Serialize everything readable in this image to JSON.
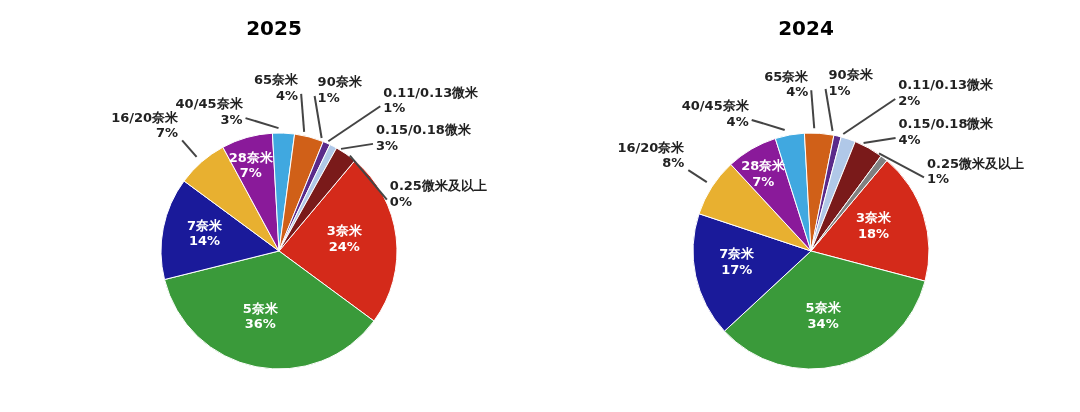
{
  "chart_data": [
    {
      "type": "pie",
      "title": "2025",
      "categories": [
        "3奈米",
        "5奈米",
        "7奈米",
        "16/20奈米",
        "28奈米",
        "40/45奈米",
        "65奈米",
        "90奈米",
        "0.11/0.13微米",
        "0.15/0.18微米",
        "0.25微米及以上"
      ],
      "values": [
        24,
        36,
        14,
        7,
        7,
        3,
        4,
        1,
        1,
        3,
        0
      ],
      "value_labels": [
        "24%",
        "36%",
        "14%",
        "7%",
        "7%",
        "3%",
        "4%",
        "1%",
        "1%",
        "3%",
        "0%"
      ],
      "colors": [
        "#d42a1a",
        "#3a9a3a",
        "#1a1a9a",
        "#e8b030",
        "#8a1a9a",
        "#40a8e0",
        "#d06018",
        "#5a2a8a",
        "#b0c8e8",
        "#7a1a1a",
        "#808080"
      ],
      "legend": false
    },
    {
      "type": "pie",
      "title": "2024",
      "categories": [
        "3奈米",
        "5奈米",
        "7奈米",
        "16/20奈米",
        "28奈米",
        "40/45奈米",
        "65奈米",
        "90奈米",
        "0.11/0.13微米",
        "0.15/0.18微米",
        "0.25微米及以上"
      ],
      "values": [
        18,
        34,
        17,
        8,
        7,
        4,
        4,
        1,
        2,
        4,
        1
      ],
      "value_labels": [
        "18%",
        "34%",
        "17%",
        "8%",
        "7%",
        "4%",
        "4%",
        "1%",
        "2%",
        "4%",
        "1%"
      ],
      "colors": [
        "#d42a1a",
        "#3a9a3a",
        "#1a1a9a",
        "#e8b030",
        "#8a1a9a",
        "#40a8e0",
        "#d06018",
        "#5a2a8a",
        "#b0c8e8",
        "#7a1a1a",
        "#808080"
      ],
      "legend": false
    }
  ]
}
